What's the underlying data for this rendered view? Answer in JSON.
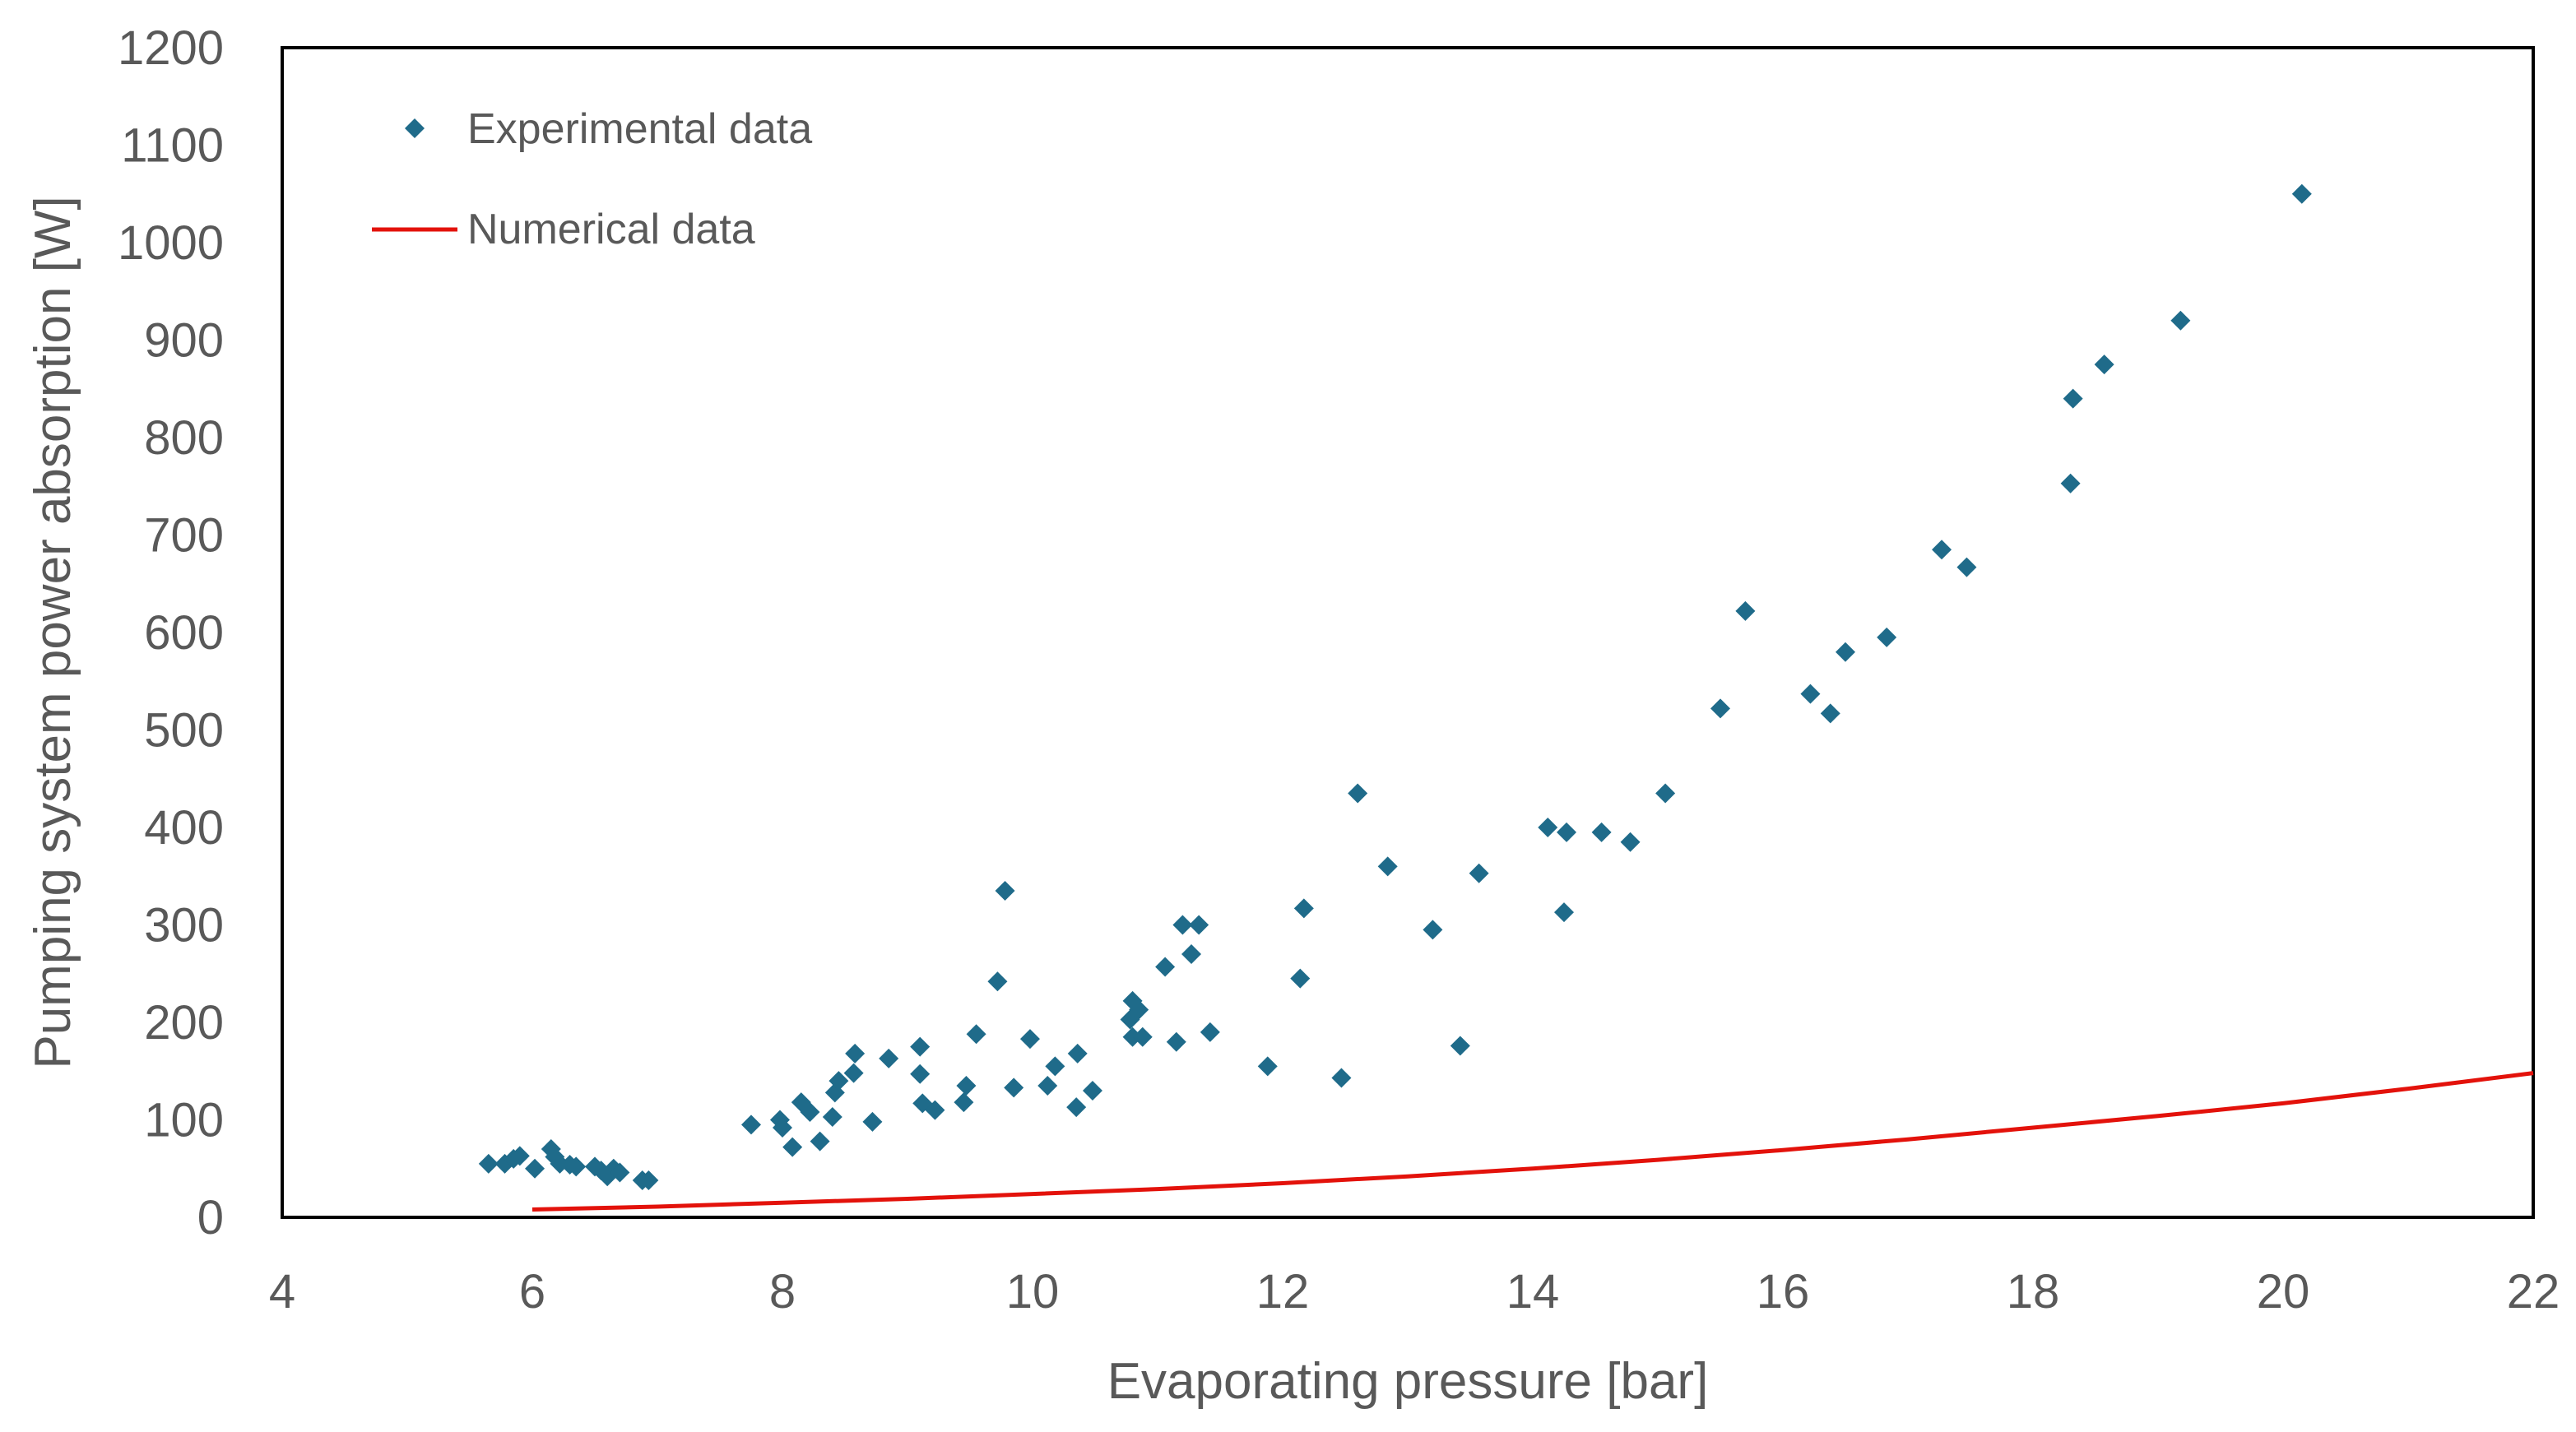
{
  "chart_data": {
    "type": "scatter",
    "title": "",
    "xlabel": "Evaporating pressure [bar]",
    "ylabel": "Pumping system power absorption [W]",
    "xlim": [
      4,
      22
    ],
    "ylim": [
      0,
      1200
    ],
    "xticks": [
      4,
      6,
      8,
      10,
      12,
      14,
      16,
      18,
      20,
      22
    ],
    "yticks": [
      0,
      100,
      200,
      300,
      400,
      500,
      600,
      700,
      800,
      900,
      1000,
      1100,
      1200
    ],
    "grid": false,
    "legend_position": "top-left",
    "series": [
      {
        "name": "Experimental data",
        "kind": "scatter",
        "marker": "diamond",
        "color": "#1f6b8a",
        "points": [
          [
            5.65,
            55
          ],
          [
            5.78,
            55
          ],
          [
            5.85,
            60
          ],
          [
            5.9,
            63
          ],
          [
            6.02,
            50
          ],
          [
            6.15,
            70
          ],
          [
            6.18,
            62
          ],
          [
            6.22,
            55
          ],
          [
            6.3,
            54
          ],
          [
            6.35,
            52
          ],
          [
            6.5,
            52
          ],
          [
            6.55,
            48
          ],
          [
            6.6,
            42
          ],
          [
            6.65,
            50
          ],
          [
            6.7,
            46
          ],
          [
            6.88,
            38
          ],
          [
            6.93,
            38
          ],
          [
            7.75,
            95
          ],
          [
            7.98,
            100
          ],
          [
            8.0,
            92
          ],
          [
            8.08,
            72
          ],
          [
            8.15,
            118
          ],
          [
            8.22,
            108
          ],
          [
            8.3,
            78
          ],
          [
            8.4,
            103
          ],
          [
            8.42,
            128
          ],
          [
            8.45,
            140
          ],
          [
            8.57,
            148
          ],
          [
            8.58,
            168
          ],
          [
            8.72,
            98
          ],
          [
            8.85,
            163
          ],
          [
            9.1,
            175
          ],
          [
            9.1,
            147
          ],
          [
            9.12,
            117
          ],
          [
            9.22,
            110
          ],
          [
            9.45,
            118
          ],
          [
            9.47,
            135
          ],
          [
            9.55,
            188
          ],
          [
            9.72,
            242
          ],
          [
            9.78,
            335
          ],
          [
            9.85,
            133
          ],
          [
            9.98,
            183
          ],
          [
            10.12,
            135
          ],
          [
            10.18,
            155
          ],
          [
            10.35,
            113
          ],
          [
            10.36,
            168
          ],
          [
            10.48,
            130
          ],
          [
            10.78,
            203
          ],
          [
            10.8,
            222
          ],
          [
            10.8,
            185
          ],
          [
            10.85,
            213
          ],
          [
            10.88,
            185
          ],
          [
            11.06,
            257
          ],
          [
            11.15,
            180
          ],
          [
            11.2,
            300
          ],
          [
            11.27,
            270
          ],
          [
            11.33,
            300
          ],
          [
            11.42,
            190
          ],
          [
            11.88,
            155
          ],
          [
            12.14,
            245
          ],
          [
            12.17,
            317
          ],
          [
            12.47,
            143
          ],
          [
            12.6,
            435
          ],
          [
            12.84,
            360
          ],
          [
            13.2,
            295
          ],
          [
            13.42,
            176
          ],
          [
            13.57,
            353
          ],
          [
            14.12,
            400
          ],
          [
            14.25,
            313
          ],
          [
            14.27,
            395
          ],
          [
            14.55,
            395
          ],
          [
            14.78,
            385
          ],
          [
            15.06,
            435
          ],
          [
            15.5,
            522
          ],
          [
            15.7,
            622
          ],
          [
            16.22,
            537
          ],
          [
            16.38,
            517
          ],
          [
            16.5,
            580
          ],
          [
            16.83,
            595
          ],
          [
            17.27,
            685
          ],
          [
            17.47,
            667
          ],
          [
            18.3,
            753
          ],
          [
            18.32,
            840
          ],
          [
            18.57,
            875
          ],
          [
            19.18,
            920
          ],
          [
            20.15,
            1050
          ]
        ]
      },
      {
        "name": "Numerical data",
        "kind": "line",
        "color": "#e3120b",
        "points": [
          [
            6,
            8
          ],
          [
            7,
            11
          ],
          [
            8,
            15
          ],
          [
            9,
            19
          ],
          [
            10,
            24
          ],
          [
            11,
            29
          ],
          [
            12,
            35
          ],
          [
            13,
            42
          ],
          [
            14,
            50
          ],
          [
            15,
            59
          ],
          [
            16,
            69
          ],
          [
            17,
            80
          ],
          [
            18,
            92
          ],
          [
            19,
            104
          ],
          [
            20,
            117
          ],
          [
            21,
            132
          ],
          [
            22,
            148
          ]
        ]
      }
    ]
  }
}
